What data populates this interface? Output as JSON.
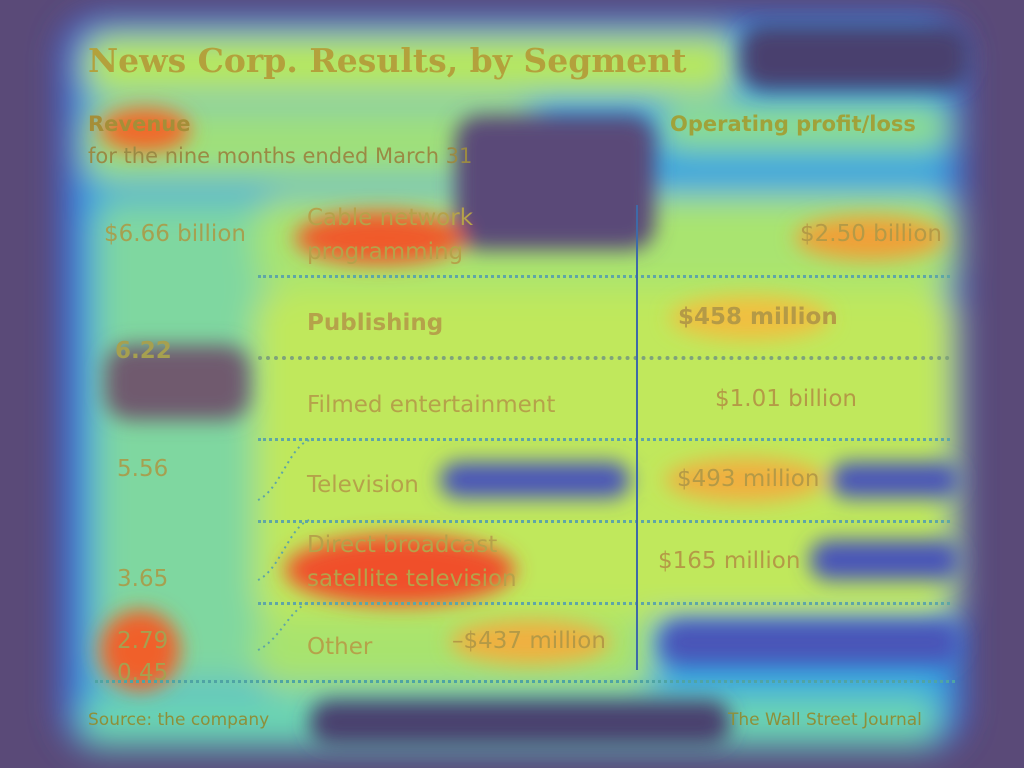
{
  "chart_data": {
    "type": "bar",
    "title": "News Corp. Results, by Segment",
    "revenue_label": "Revenue",
    "revenue_sublabel": "for the nine months ended March 31",
    "profit_label": "Operating profit/loss",
    "segments": [
      {
        "name": "Cable network programming",
        "name_lines": [
          "Cable network",
          "programming"
        ],
        "revenue": 6.66,
        "revenue_label": "$6.66 billion",
        "profit": 2500,
        "profit_label": "$2.50 billion",
        "bold": false
      },
      {
        "name": "Publishing",
        "name_lines": [
          "Publishing"
        ],
        "revenue": 6.22,
        "revenue_label": "6.22",
        "profit": 458,
        "profit_label": "$458 million",
        "bold": true
      },
      {
        "name": "Filmed entertainment",
        "name_lines": [
          "Filmed entertainment"
        ],
        "revenue": 5.56,
        "revenue_label": "5.56",
        "profit": 1010,
        "profit_label": "$1.01 billion",
        "bold": false
      },
      {
        "name": "Television",
        "name_lines": [
          "Television"
        ],
        "revenue": 3.65,
        "revenue_label": "3.65",
        "profit": 493,
        "profit_label": "$493 million",
        "bold": false
      },
      {
        "name": "Direct broadcast satellite television",
        "name_lines": [
          "Direct broadcast",
          "satellite television"
        ],
        "revenue": 2.79,
        "revenue_label": "2.79",
        "profit": 165,
        "profit_label": "$165 million",
        "bold": false
      },
      {
        "name": "Other",
        "name_lines": [
          "Other"
        ],
        "revenue": 0.45,
        "revenue_label": "0.45",
        "profit": -437,
        "profit_label": "–$437 million",
        "bold": false
      }
    ],
    "source": "Source: the company",
    "credit": "The Wall Street Journal"
  }
}
